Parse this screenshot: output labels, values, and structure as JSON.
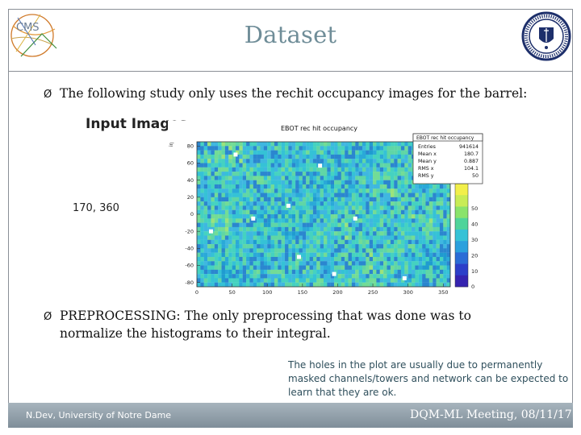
{
  "slide": {
    "title": "Dataset",
    "bullet_marker": "Ø",
    "bullet1": "The following study only uses the rechit occupancy images for the barrel:",
    "bullet2_line1": "PREPROCESSING: The only preprocessing that was done was to",
    "bullet2_line2": "normalize the histograms to their integral.",
    "input_images_label": "Input Images",
    "dimensions_label": "170, 360",
    "note": "The holes in the plot are usually due to permanently masked channels/towers and network can be expected to learn that they are ok.",
    "footer_left": "N.Dev, University of Notre Dame",
    "footer_right": "DQM-ML Meeting, 08/11/17",
    "logo_text": "CMS",
    "colors": {
      "title": "#6f8d98",
      "frame": "#8a8f96",
      "footer": "#8e9ca6",
      "note": "#2f4f5c"
    }
  },
  "chart_data": {
    "type": "heatmap",
    "title": "EBOT rec hit occupancy",
    "ylabel": "iη",
    "x_ticks": [
      "0",
      "50",
      "100",
      "150",
      "200",
      "250",
      "300",
      "350"
    ],
    "y_ticks": [
      "80",
      "60",
      "40",
      "20",
      "0",
      "-20",
      "-40",
      "-60",
      "-80"
    ],
    "xlim": [
      0,
      360
    ],
    "ylim": [
      -85,
      85
    ],
    "z_ticks": [
      "50",
      "40",
      "30",
      "20",
      "10",
      "0"
    ],
    "zlim": [
      0,
      60
    ],
    "stats": {
      "title": "EBOT rec hit occupancy",
      "rows": [
        {
          "label": "Entries",
          "value": "941614"
        },
        {
          "label": "Mean x",
          "value": "180.7"
        },
        {
          "label": "Mean y",
          "value": "0.887"
        },
        {
          "label": "RMS x",
          "value": "104.1"
        },
        {
          "label": "RMS y",
          "value": "50"
        }
      ]
    }
  }
}
